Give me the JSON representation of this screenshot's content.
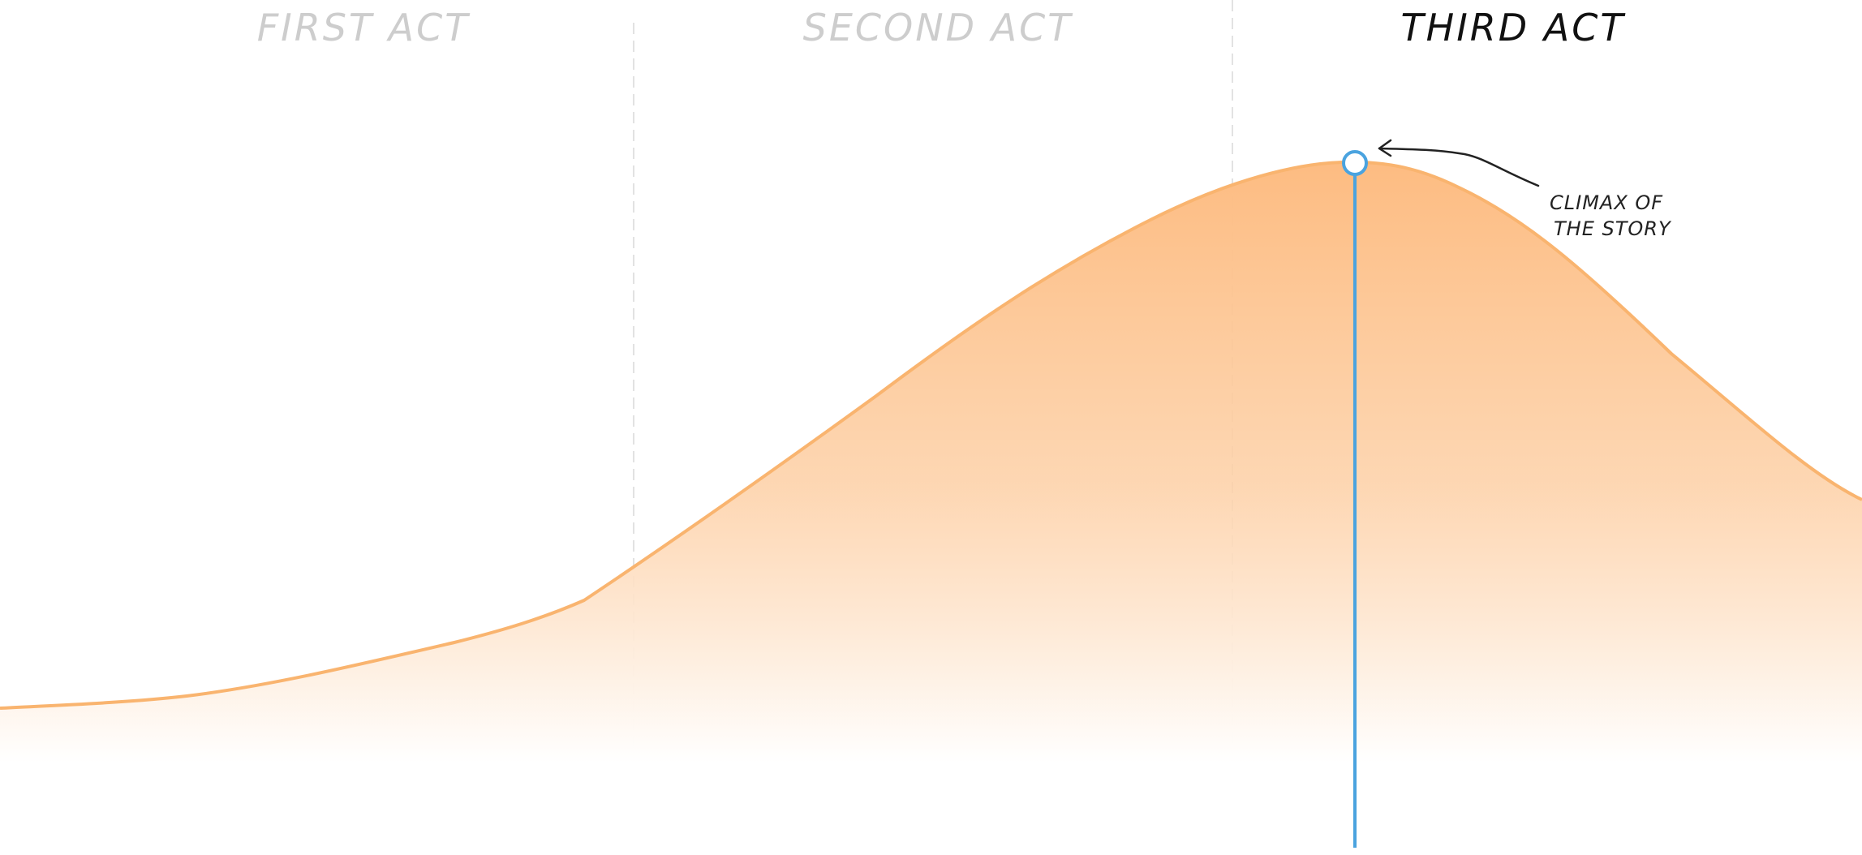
{
  "acts": [
    {
      "label": "FIRST ACT",
      "state": "faded"
    },
    {
      "label": "SECOND ACT",
      "state": "faded"
    },
    {
      "label": "THIRD ACT",
      "state": "active"
    }
  ],
  "annotation": {
    "line1": "CLIMAX OF",
    "line2": "THE STORY"
  },
  "colors": {
    "curve_stroke": "#f9b46f",
    "fill_top": "#fdbb80",
    "fill_bottom": "#ffffff",
    "marker": "#4aa3df",
    "divider": "#e2e2e2",
    "arrow": "#222222"
  }
}
